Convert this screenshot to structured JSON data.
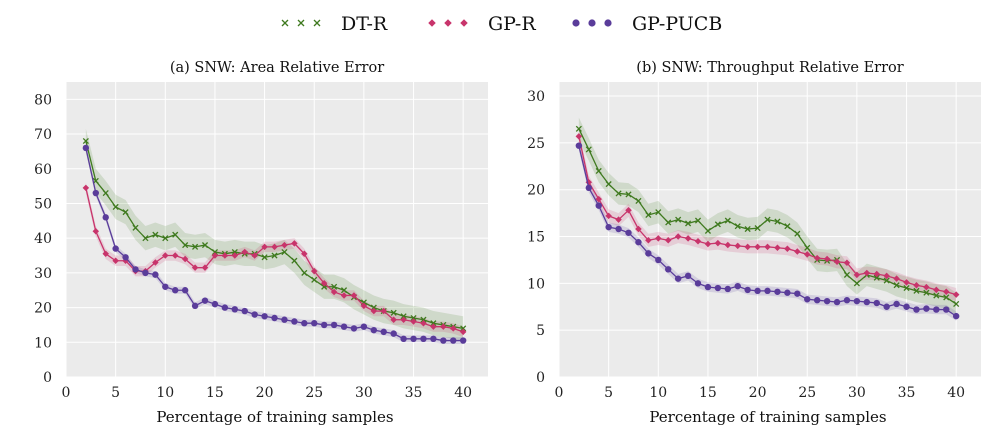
{
  "legend": [
    {
      "name": "DT-R",
      "color": "#3f7a1f",
      "marker": "x"
    },
    {
      "name": "GP-R",
      "color": "#c8346b",
      "marker": "diamond"
    },
    {
      "name": "GP-PUCB",
      "color": "#5a3c9a",
      "marker": "circle"
    }
  ],
  "chart_data": [
    {
      "type": "line",
      "title": "(a) SNW: Area Relative Error",
      "xlabel": "Percentage of training samples",
      "ylabel": "",
      "xlim": [
        0,
        42.5
      ],
      "ylim": [
        0,
        85
      ],
      "xticks": [
        0,
        5,
        10,
        15,
        20,
        25,
        30,
        35,
        40
      ],
      "yticks": [
        0,
        10,
        20,
        30,
        40,
        50,
        60,
        70,
        80
      ],
      "grid": true,
      "x": [
        2,
        3,
        4,
        5,
        6,
        7,
        8,
        9,
        10,
        11,
        12,
        13,
        14,
        15,
        16,
        17,
        18,
        19,
        20,
        21,
        22,
        23,
        24,
        25,
        26,
        27,
        28,
        29,
        30,
        31,
        32,
        33,
        34,
        35,
        36,
        37,
        38,
        39,
        40
      ],
      "series": [
        {
          "name": "DT-R",
          "band": 3.5,
          "values": [
            68,
            56.5,
            53,
            49,
            47.5,
            43,
            40,
            41,
            40,
            41,
            38,
            37.5,
            38,
            36,
            35.5,
            36,
            35.5,
            35.5,
            34.5,
            35,
            36,
            33.5,
            30,
            28,
            26,
            26,
            25,
            23,
            21.5,
            20,
            19,
            18.5,
            17.5,
            17,
            16.5,
            15.5,
            15,
            14.5,
            14
          ]
        },
        {
          "name": "GP-R",
          "band": 1.5,
          "values": [
            54.5,
            42,
            35.5,
            33.5,
            33.5,
            30.5,
            30.5,
            33,
            35,
            35,
            34,
            31.5,
            31.5,
            35,
            35,
            35,
            36,
            35,
            37.5,
            37.5,
            38,
            38.5,
            35.5,
            30.5,
            27,
            24.5,
            23.5,
            23.5,
            20.5,
            19,
            19,
            16.5,
            16.5,
            16,
            15.5,
            14.5,
            14.5,
            14,
            13
          ]
        },
        {
          "name": "GP-PUCB",
          "band": 1.0,
          "values": [
            66,
            53,
            46,
            37,
            34.5,
            31,
            30,
            29.5,
            26,
            25,
            25,
            20.5,
            22,
            21,
            20,
            19.5,
            19,
            18,
            17.5,
            17,
            16.5,
            16,
            15.5,
            15.5,
            15,
            15,
            14.5,
            14,
            14.5,
            13.5,
            13,
            12.5,
            11,
            11,
            11,
            11,
            10.5,
            10.5,
            10.5
          ]
        }
      ]
    },
    {
      "type": "line",
      "title": "(b) SNW: Throughput Relative Error",
      "xlabel": "Percentage of training samples",
      "ylabel": "",
      "xlim": [
        0,
        42.5
      ],
      "ylim": [
        0,
        31.5
      ],
      "xticks": [
        0,
        5,
        10,
        15,
        20,
        25,
        30,
        35,
        40
      ],
      "yticks": [
        0,
        5,
        10,
        15,
        20,
        25,
        30
      ],
      "grid": true,
      "x": [
        2,
        3,
        4,
        5,
        6,
        7,
        8,
        9,
        10,
        11,
        12,
        13,
        14,
        15,
        16,
        17,
        18,
        19,
        20,
        21,
        22,
        23,
        24,
        25,
        26,
        27,
        28,
        29,
        30,
        31,
        32,
        33,
        34,
        35,
        36,
        37,
        38,
        39,
        40
      ],
      "series": [
        {
          "name": "DT-R",
          "band": 1.2,
          "values": [
            26.5,
            24.3,
            22,
            20.6,
            19.6,
            19.5,
            18.8,
            17.3,
            17.6,
            16.5,
            16.8,
            16.4,
            16.7,
            15.6,
            16.3,
            16.7,
            16.1,
            15.8,
            15.9,
            16.8,
            16.6,
            16.1,
            15.3,
            13.8,
            12.5,
            12.4,
            12.5,
            10.9,
            10,
            10.9,
            10.6,
            10.3,
            9.8,
            9.5,
            9.2,
            9,
            8.7,
            8.5,
            7.8
          ]
        },
        {
          "name": "GP-R",
          "band": 0.7,
          "values": [
            25.7,
            20.8,
            19,
            17.2,
            16.8,
            17.8,
            15.8,
            14.6,
            14.8,
            14.6,
            15,
            14.8,
            14.5,
            14.2,
            14.3,
            14.1,
            14,
            13.9,
            13.9,
            13.9,
            13.8,
            13.7,
            13.4,
            13.1,
            12.7,
            12.6,
            12.3,
            12.2,
            10.9,
            11.1,
            11,
            10.8,
            10.5,
            10.1,
            9.8,
            9.6,
            9.3,
            9.1,
            8.8
          ]
        },
        {
          "name": "GP-PUCB",
          "band": 0.5,
          "values": [
            24.7,
            20.2,
            18.3,
            16,
            15.8,
            15.4,
            14.4,
            13.2,
            12.5,
            11.5,
            10.5,
            10.8,
            10,
            9.6,
            9.5,
            9.4,
            9.7,
            9.3,
            9.2,
            9.2,
            9.1,
            9,
            8.9,
            8.3,
            8.2,
            8.1,
            8,
            8.2,
            8.1,
            8,
            7.9,
            7.5,
            7.8,
            7.5,
            7.2,
            7.3,
            7.2,
            7.2,
            6.5
          ]
        }
      ]
    }
  ]
}
